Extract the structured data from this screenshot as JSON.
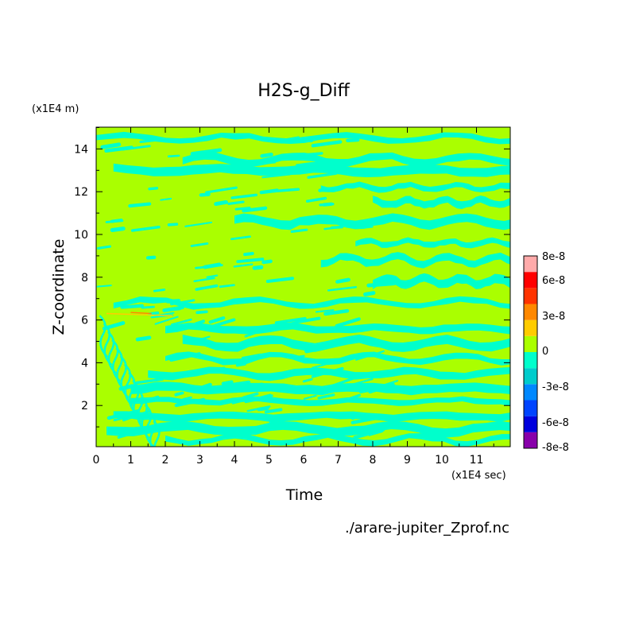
{
  "chart_data": {
    "type": "heatmap",
    "title": "H2S-g_Diff",
    "xlabel": "Time",
    "ylabel": "Z-coordinate",
    "x_unit": "(x1E4 sec)",
    "y_unit": "(x1E4 m)",
    "xlim": [
      0,
      12
    ],
    "ylim": [
      0.1,
      15
    ],
    "x_ticks": [
      "0",
      "1",
      "2",
      "3",
      "4",
      "5",
      "6",
      "7",
      "8",
      "9",
      "10",
      "11"
    ],
    "y_ticks": [
      "2",
      "4",
      "6",
      "8",
      "10",
      "12",
      "14"
    ],
    "source": "./arare-jupiter_Zprof.nc",
    "colorbar": {
      "labels": [
        "8e-8",
        "6e-8",
        "3e-8",
        "0",
        "-3e-8",
        "-6e-8",
        "-8e-8"
      ],
      "levels": [
        {
          "color": "#8800aa"
        },
        {
          "color": "#0000dd"
        },
        {
          "color": "#0044ff"
        },
        {
          "color": "#0088ff"
        },
        {
          "color": "#00cccc"
        },
        {
          "color": "#00ffcc"
        },
        {
          "color": "#aaff00"
        },
        {
          "color": "#ffcc00"
        },
        {
          "color": "#ff8800"
        },
        {
          "color": "#ff3300"
        },
        {
          "color": "#ff0000"
        },
        {
          "color": "#ffaaaa"
        }
      ]
    },
    "pattern": {
      "dominant_colors": [
        "#aaff00",
        "#00ffcc"
      ],
      "bands": [
        {
          "y": 14.5,
          "t_start": 0.0,
          "t_end": 12
        },
        {
          "y": 13.5,
          "t_start": 2.5,
          "t_end": 12
        },
        {
          "y": 13.0,
          "t_start": 0.5,
          "t_end": 12
        },
        {
          "y": 12.2,
          "t_start": 6.5,
          "t_end": 12
        },
        {
          "y": 11.5,
          "t_start": 8.0,
          "t_end": 12
        },
        {
          "y": 10.6,
          "t_start": 4.0,
          "t_end": 12
        },
        {
          "y": 9.6,
          "t_start": 7.5,
          "t_end": 12
        },
        {
          "y": 8.8,
          "t_start": 6.5,
          "t_end": 12
        },
        {
          "y": 7.8,
          "t_start": 8.0,
          "t_end": 12
        },
        {
          "y": 6.8,
          "t_start": 0.5,
          "t_end": 12
        },
        {
          "y": 5.6,
          "t_start": 2.0,
          "t_end": 12
        },
        {
          "y": 4.9,
          "t_start": 2.5,
          "t_end": 12
        },
        {
          "y": 4.2,
          "t_start": 2.0,
          "t_end": 12
        },
        {
          "y": 3.5,
          "t_start": 1.5,
          "t_end": 12
        },
        {
          "y": 2.8,
          "t_start": 1.0,
          "t_end": 12
        },
        {
          "y": 2.2,
          "t_start": 1.0,
          "t_end": 12
        },
        {
          "y": 1.5,
          "t_start": 0.5,
          "t_end": 12
        },
        {
          "y": 0.9,
          "t_start": 0.3,
          "t_end": 12
        },
        {
          "y": 0.4,
          "t_start": 2.0,
          "t_end": 12
        }
      ]
    }
  }
}
